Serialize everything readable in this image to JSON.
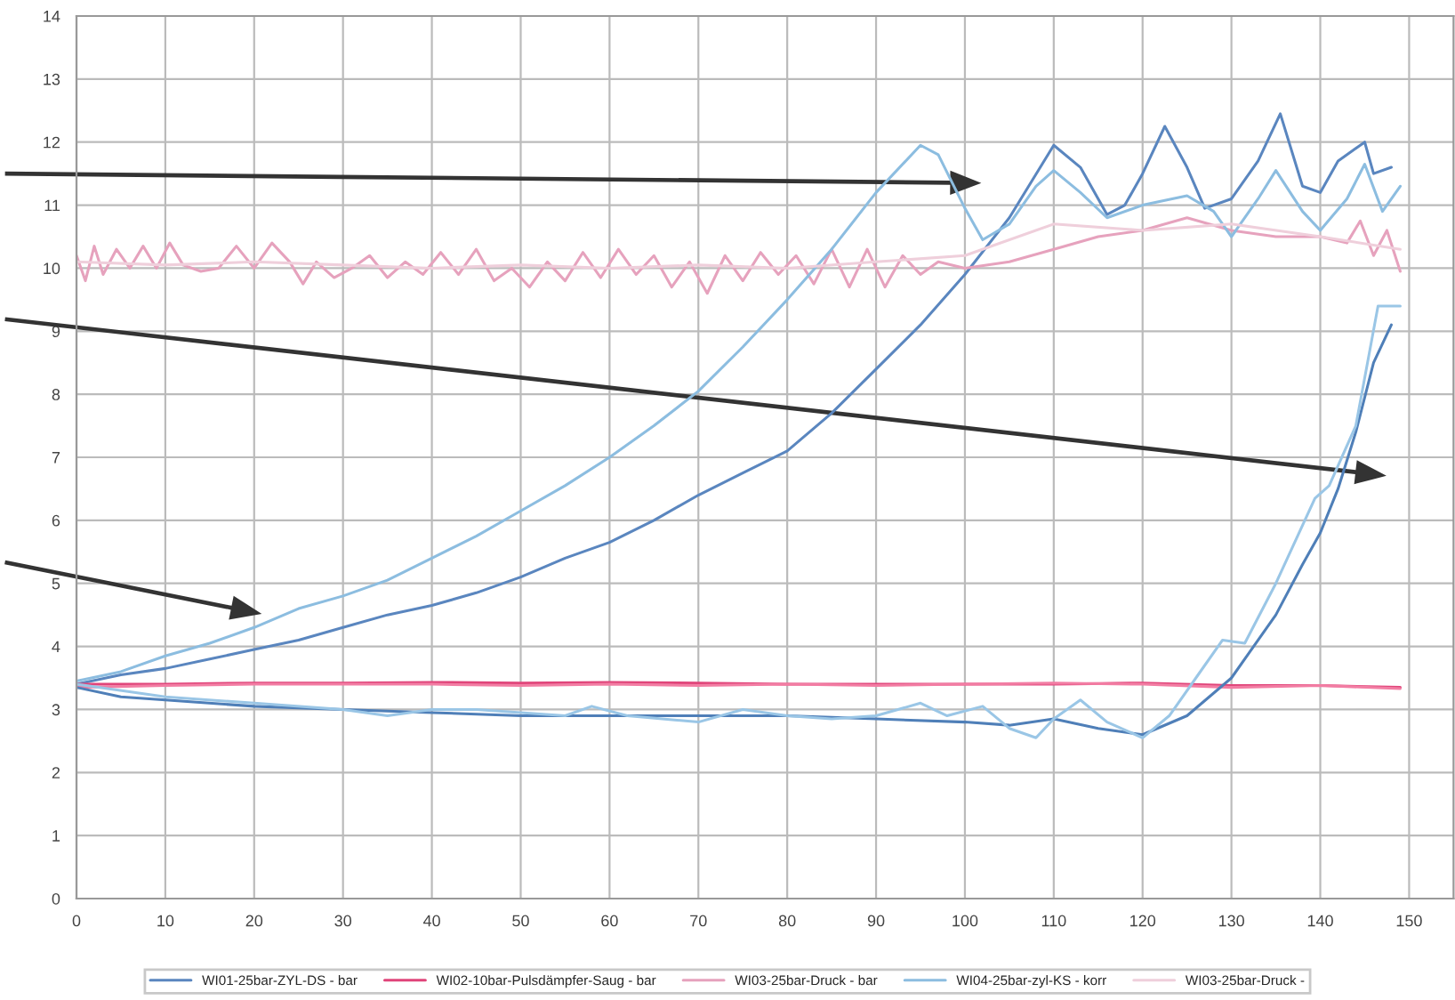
{
  "chart_data": {
    "type": "line",
    "xlim": [
      0,
      155
    ],
    "xticks": [
      0,
      10,
      20,
      30,
      40,
      50,
      60,
      70,
      80,
      90,
      100,
      110,
      120,
      130,
      140,
      150
    ],
    "ylim": [
      0,
      14
    ],
    "yticks": [
      0,
      1,
      2,
      3,
      4,
      5,
      6,
      7,
      8,
      9,
      10,
      11,
      12,
      13,
      14
    ],
    "grid": true,
    "legend": "bottom",
    "series": [
      {
        "name": "WI01-25bar-ZYL-DS - bar",
        "color": "#5a86bf",
        "x": [
          0,
          5,
          10,
          15,
          20,
          25,
          30,
          35,
          40,
          45,
          50,
          55,
          60,
          65,
          70,
          75,
          80,
          85,
          90,
          95,
          100,
          105,
          110,
          113,
          116,
          118,
          120,
          122.5,
          125,
          127,
          130,
          133,
          135.5,
          138,
          140,
          142,
          145,
          146,
          148
        ],
        "values": [
          3.4,
          3.55,
          3.65,
          3.8,
          3.95,
          4.1,
          4.3,
          4.5,
          4.65,
          4.85,
          5.1,
          5.4,
          5.65,
          6.0,
          6.4,
          6.75,
          7.1,
          7.7,
          8.4,
          9.1,
          9.9,
          10.8,
          11.95,
          11.6,
          10.85,
          11.0,
          11.5,
          12.25,
          11.6,
          10.95,
          11.1,
          11.7,
          12.45,
          11.3,
          11.2,
          11.7,
          12.0,
          11.5,
          11.6
        ]
      },
      {
        "name": "WI02-10bar-Pulsdämpfer-Saug - bar",
        "color": "#e0457a",
        "x": [
          0,
          10,
          20,
          30,
          40,
          50,
          60,
          70,
          80,
          90,
          100,
          110,
          120,
          130,
          140,
          149
        ],
        "values": [
          3.4,
          3.4,
          3.42,
          3.42,
          3.43,
          3.42,
          3.43,
          3.42,
          3.4,
          3.4,
          3.4,
          3.4,
          3.42,
          3.38,
          3.38,
          3.35
        ]
      },
      {
        "name": "WI03-25bar-Druck - bar",
        "color": "#e6a2bd",
        "x": [
          0,
          1,
          2,
          3,
          4.5,
          6,
          7.5,
          9,
          10.5,
          12,
          14,
          16,
          18,
          20,
          22,
          24,
          25.5,
          27,
          29,
          31,
          33,
          35,
          37,
          39,
          41,
          43,
          45,
          47,
          49,
          51,
          53,
          55,
          57,
          59,
          61,
          63,
          65,
          67,
          69,
          71,
          73,
          75,
          77,
          79,
          81,
          83,
          85,
          87,
          89,
          91,
          93,
          95,
          97,
          100,
          105,
          110,
          115,
          120,
          125,
          130,
          135,
          140,
          143,
          144.5,
          146,
          147.5,
          149
        ],
        "values": [
          10.2,
          9.8,
          10.35,
          9.9,
          10.3,
          10.0,
          10.35,
          10.0,
          10.4,
          10.05,
          9.95,
          10.0,
          10.35,
          10.0,
          10.4,
          10.1,
          9.75,
          10.1,
          9.85,
          10.0,
          10.2,
          9.85,
          10.1,
          9.9,
          10.25,
          9.9,
          10.3,
          9.8,
          10.0,
          9.7,
          10.1,
          9.8,
          10.25,
          9.85,
          10.3,
          9.9,
          10.2,
          9.7,
          10.1,
          9.6,
          10.2,
          9.8,
          10.25,
          9.9,
          10.2,
          9.75,
          10.3,
          9.7,
          10.3,
          9.7,
          10.2,
          9.9,
          10.1,
          10.0,
          10.1,
          10.3,
          10.5,
          10.6,
          10.8,
          10.6,
          10.5,
          10.5,
          10.4,
          10.75,
          10.2,
          10.6,
          9.95
        ]
      },
      {
        "name": "WI04-25bar-zyl-KS - korr",
        "color": "#8cbde0",
        "x": [
          0,
          5,
          10,
          15,
          20,
          25,
          30,
          35,
          40,
          45,
          50,
          55,
          60,
          65,
          70,
          75,
          80,
          85,
          90,
          95,
          97,
          100,
          102,
          105,
          108,
          110,
          113,
          116,
          120,
          125,
          128,
          130,
          133,
          135,
          138,
          140,
          143,
          145,
          147,
          149
        ],
        "values": [
          3.45,
          3.6,
          3.85,
          4.05,
          4.3,
          4.6,
          4.8,
          5.05,
          5.4,
          5.75,
          6.15,
          6.55,
          7.0,
          7.5,
          8.05,
          8.75,
          9.5,
          10.3,
          11.2,
          11.95,
          11.8,
          10.95,
          10.45,
          10.7,
          11.3,
          11.55,
          11.2,
          10.8,
          11.0,
          11.15,
          10.9,
          10.5,
          11.1,
          11.55,
          10.9,
          10.6,
          11.1,
          11.65,
          10.9,
          11.3
        ]
      },
      {
        "name": "WI03-25bar-Druck -",
        "color": "#efcfdb",
        "x": [
          0,
          10,
          20,
          30,
          40,
          50,
          60,
          70,
          80,
          90,
          100,
          110,
          120,
          130,
          140,
          149
        ],
        "values": [
          10.1,
          10.05,
          10.1,
          10.05,
          10.0,
          10.05,
          10.0,
          10.05,
          10.0,
          10.1,
          10.2,
          10.7,
          10.6,
          10.7,
          10.5,
          10.3
        ]
      },
      {
        "color": "#f27da3",
        "x": [
          0,
          10,
          20,
          30,
          40,
          50,
          60,
          70,
          80,
          90,
          100,
          110,
          120,
          130,
          140,
          149
        ],
        "values": [
          3.35,
          3.38,
          3.4,
          3.4,
          3.4,
          3.38,
          3.4,
          3.38,
          3.4,
          3.38,
          3.4,
          3.42,
          3.4,
          3.35,
          3.38,
          3.33
        ]
      },
      {
        "color": "#4f7fb8",
        "x": [
          0,
          5,
          10,
          20,
          30,
          40,
          50,
          60,
          70,
          80,
          90,
          100,
          105,
          110,
          115,
          120,
          125,
          130,
          132,
          135,
          138,
          140,
          142,
          144,
          146,
          148
        ],
        "values": [
          3.35,
          3.2,
          3.15,
          3.05,
          3.0,
          2.95,
          2.9,
          2.9,
          2.9,
          2.9,
          2.85,
          2.8,
          2.75,
          2.85,
          2.7,
          2.6,
          2.9,
          3.5,
          3.9,
          4.5,
          5.3,
          5.8,
          6.5,
          7.4,
          8.5,
          9.1
        ]
      },
      {
        "color": "#9ac6e6",
        "x": [
          0,
          10,
          20,
          30,
          35,
          40,
          45,
          50,
          55,
          58,
          62,
          70,
          75,
          80,
          85,
          90,
          95,
          98,
          102,
          105,
          108,
          110,
          113,
          116,
          120,
          123,
          126,
          129,
          131.5,
          135,
          139.4,
          141,
          144,
          146.5,
          149
        ],
        "values": [
          3.4,
          3.2,
          3.1,
          3.0,
          2.9,
          3.0,
          3.0,
          2.95,
          2.9,
          3.05,
          2.9,
          2.8,
          3.0,
          2.9,
          2.85,
          2.9,
          3.1,
          2.9,
          3.05,
          2.7,
          2.55,
          2.85,
          3.15,
          2.8,
          2.55,
          2.9,
          3.5,
          4.1,
          4.05,
          5.0,
          6.35,
          6.55,
          7.5,
          9.4,
          9.4
        ]
      }
    ]
  }
}
